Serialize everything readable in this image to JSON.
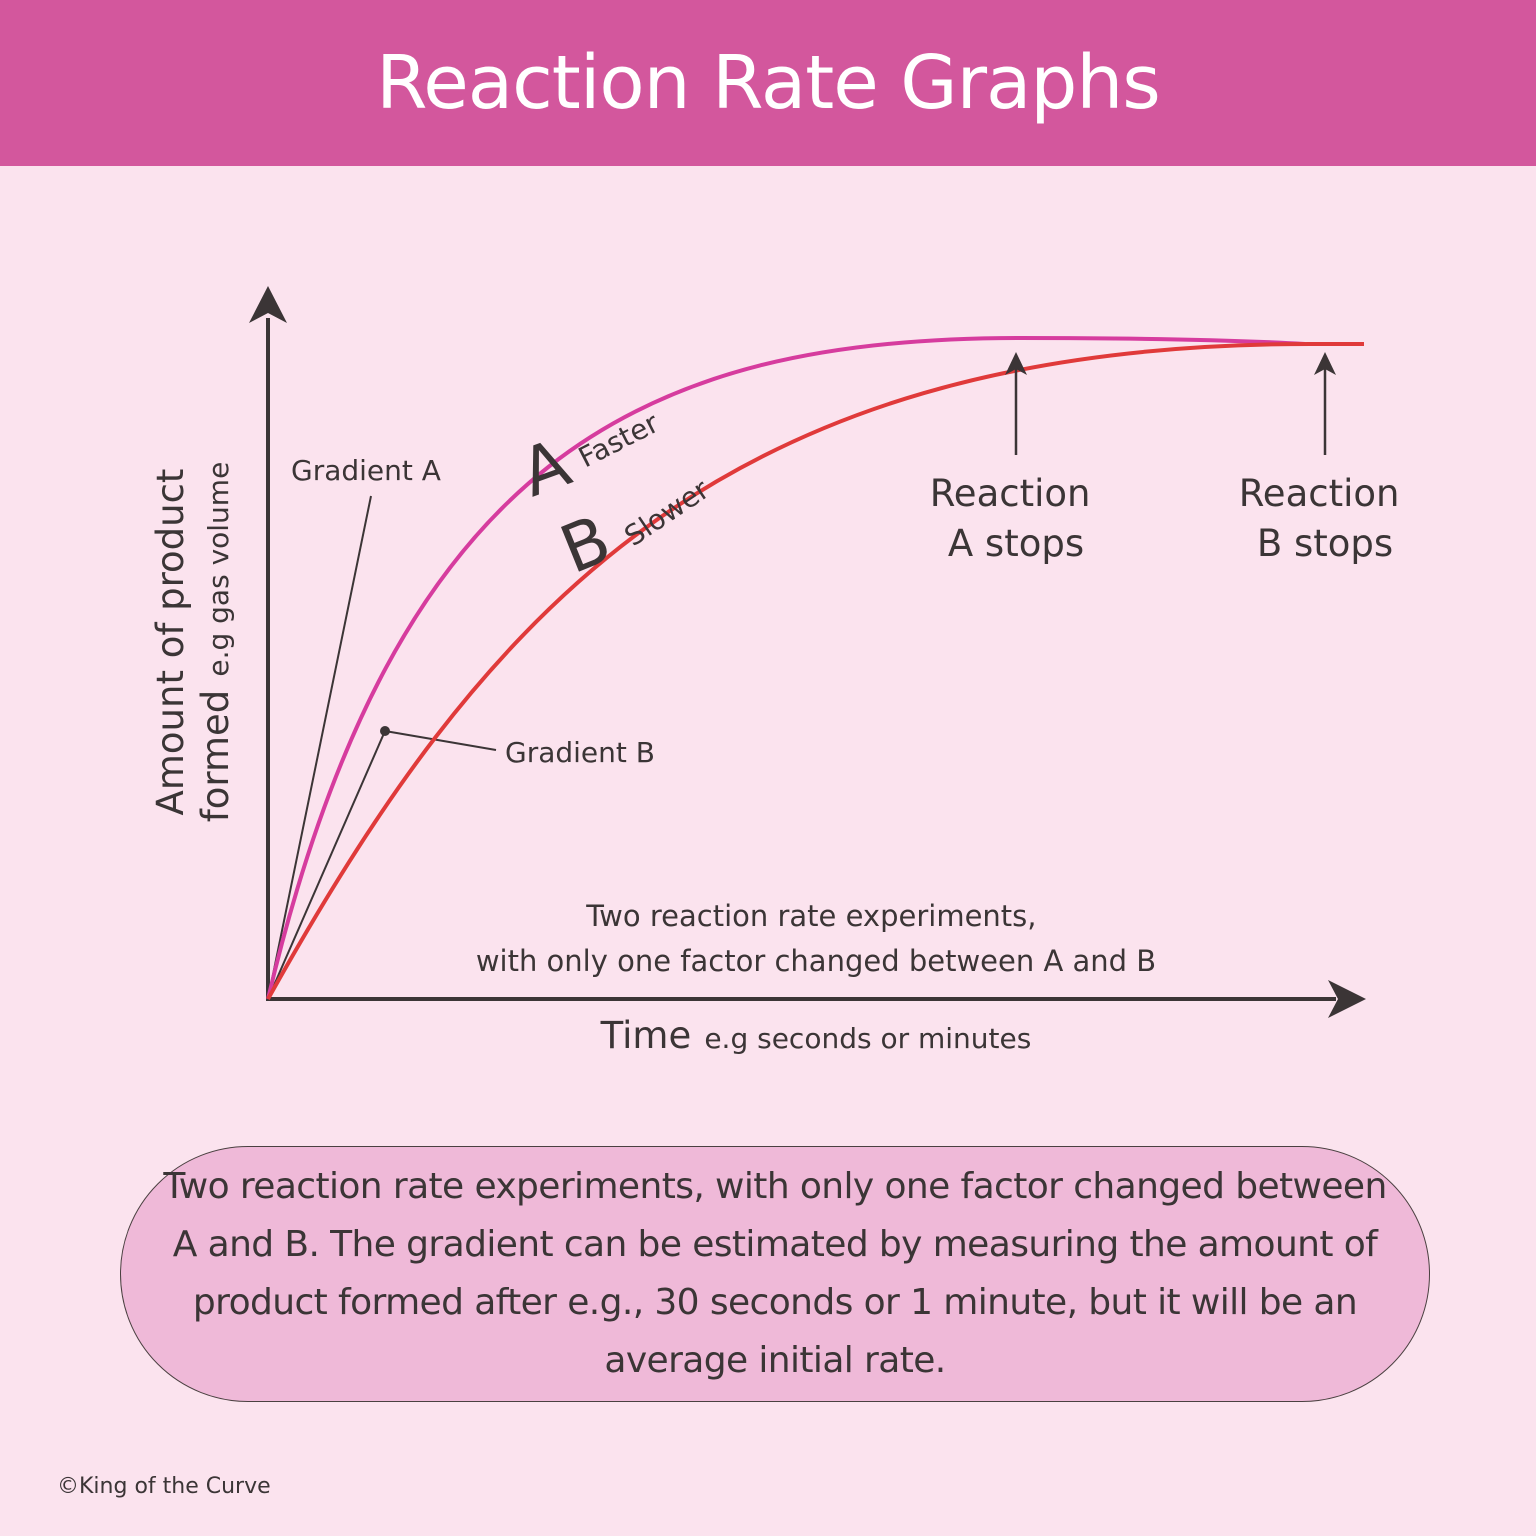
{
  "header": {
    "title": "Reaction Rate Graphs"
  },
  "diagram": {
    "y_axis_label_main": "Amount of product",
    "y_axis_label_sub_prefix": "formed",
    "y_axis_label_sub_suffix": "e.g gas volume",
    "x_axis_label_main": "Time",
    "x_axis_label_sub": "e.g seconds or minutes",
    "curve_a_letter": "A",
    "curve_a_desc": "Faster",
    "curve_b_letter": "B",
    "curve_b_desc": "Slower",
    "gradient_a_label": "Gradient A",
    "gradient_b_label": "Gradient B",
    "reaction_a_stops_line1": "Reaction",
    "reaction_a_stops_line2": "A stops",
    "reaction_b_stops_line1": "Reaction",
    "reaction_b_stops_line2": "B stops",
    "caption_line1": "Two reaction rate experiments,",
    "caption_line2": "with only one factor changed between A and B",
    "colors": {
      "curve_a": "#d63c9e",
      "curve_b": "#e03a3a",
      "axis": "#3b3536"
    }
  },
  "summary": {
    "text": "Two reaction rate experiments, with only one factor changed between A and B. The gradient can be estimated by measuring the amount of product formed after e.g., 30 seconds or 1 minute, but it will be an average initial rate."
  },
  "footer": {
    "copyright": "©King of the Curve"
  }
}
